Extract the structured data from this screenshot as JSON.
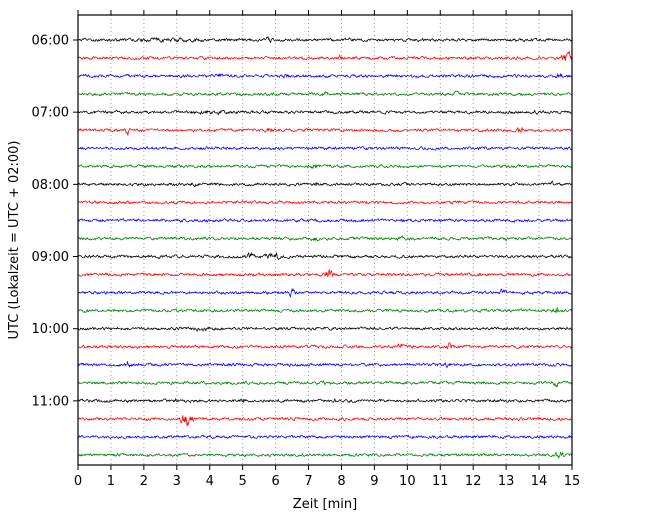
{
  "chart_data": {
    "type": "line",
    "subtype": "seismogram-dayplot",
    "title": "",
    "xlabel": "Zeit  [min]",
    "ylabel": "UTC (Lokalzeit = UTC + 02:00)",
    "xlim": [
      0,
      15
    ],
    "minutes_per_row": 15,
    "x_tick_labels": [
      "0",
      "1",
      "2",
      "3",
      "4",
      "5",
      "6",
      "7",
      "8",
      "9",
      "10",
      "11",
      "12",
      "13",
      "14",
      "15"
    ],
    "y_tick_labels": [
      "06:00",
      "07:00",
      "08:00",
      "09:00",
      "10:00",
      "11:00"
    ],
    "color_cycle": [
      "#000000",
      "#ff0000",
      "#0000ff",
      "#008000"
    ],
    "grid": {
      "vertical": true,
      "style": "dotted",
      "color": "#999999"
    },
    "rows": [
      {
        "start_utc": "06:00",
        "color": "#000000",
        "labeled": true
      },
      {
        "start_utc": "06:15",
        "color": "#ff0000",
        "labeled": false
      },
      {
        "start_utc": "06:30",
        "color": "#0000ff",
        "labeled": false
      },
      {
        "start_utc": "06:45",
        "color": "#008000",
        "labeled": false
      },
      {
        "start_utc": "07:00",
        "color": "#000000",
        "labeled": true
      },
      {
        "start_utc": "07:15",
        "color": "#ff0000",
        "labeled": false
      },
      {
        "start_utc": "07:30",
        "color": "#0000ff",
        "labeled": false
      },
      {
        "start_utc": "07:45",
        "color": "#008000",
        "labeled": false
      },
      {
        "start_utc": "08:00",
        "color": "#000000",
        "labeled": true
      },
      {
        "start_utc": "08:15",
        "color": "#ff0000",
        "labeled": false
      },
      {
        "start_utc": "08:30",
        "color": "#0000ff",
        "labeled": false
      },
      {
        "start_utc": "08:45",
        "color": "#008000",
        "labeled": false
      },
      {
        "start_utc": "09:00",
        "color": "#000000",
        "labeled": true
      },
      {
        "start_utc": "09:15",
        "color": "#ff0000",
        "labeled": false
      },
      {
        "start_utc": "09:30",
        "color": "#0000ff",
        "labeled": false
      },
      {
        "start_utc": "09:45",
        "color": "#008000",
        "labeled": false
      },
      {
        "start_utc": "10:00",
        "color": "#000000",
        "labeled": true
      },
      {
        "start_utc": "10:15",
        "color": "#ff0000",
        "labeled": false
      },
      {
        "start_utc": "10:30",
        "color": "#0000ff",
        "labeled": false
      },
      {
        "start_utc": "10:45",
        "color": "#008000",
        "labeled": false
      },
      {
        "start_utc": "11:00",
        "color": "#000000",
        "labeled": true
      },
      {
        "start_utc": "11:15",
        "color": "#ff0000",
        "labeled": false
      },
      {
        "start_utc": "11:30",
        "color": "#0000ff",
        "labeled": false
      },
      {
        "start_utc": "11:45",
        "color": "#008000",
        "labeled": false
      }
    ],
    "events": [
      {
        "row": 0,
        "min": 2.6,
        "amp": 1.6,
        "w": 0.8
      },
      {
        "row": 0,
        "min": 5.8,
        "amp": 2.2,
        "w": 0.1
      },
      {
        "row": 0,
        "min": 8.3,
        "amp": 1.8,
        "w": 0.08
      },
      {
        "row": 1,
        "min": 8.0,
        "amp": 2.0,
        "w": 0.08
      },
      {
        "row": 1,
        "min": 14.85,
        "amp": 6.0,
        "w": 0.12
      },
      {
        "row": 2,
        "min": 4.3,
        "amp": 2.4,
        "w": 0.08
      },
      {
        "row": 2,
        "min": 6.3,
        "amp": 1.8,
        "w": 0.06
      },
      {
        "row": 2,
        "min": 14.6,
        "amp": 2.2,
        "w": 0.1
      },
      {
        "row": 3,
        "min": 7.5,
        "amp": 2.2,
        "w": 0.07
      },
      {
        "row": 3,
        "min": 11.5,
        "amp": 2.2,
        "w": 0.07
      },
      {
        "row": 4,
        "min": 3.9,
        "amp": 1.5,
        "w": 0.6
      },
      {
        "row": 4,
        "min": 13.9,
        "amp": 1.8,
        "w": 0.06
      },
      {
        "row": 5,
        "min": 1.5,
        "amp": 2.8,
        "w": 0.1
      },
      {
        "row": 5,
        "min": 5.8,
        "amp": 2.4,
        "w": 0.08
      },
      {
        "row": 5,
        "min": 13.4,
        "amp": 3.4,
        "w": 0.1
      },
      {
        "row": 7,
        "min": 7.2,
        "amp": 1.8,
        "w": 0.15
      },
      {
        "row": 8,
        "min": 3.5,
        "amp": 2.8,
        "w": 0.07
      },
      {
        "row": 8,
        "min": 7.2,
        "amp": 2.0,
        "w": 0.06
      },
      {
        "row": 8,
        "min": 14.4,
        "amp": 2.4,
        "w": 0.08
      },
      {
        "row": 11,
        "min": 7.2,
        "amp": 2.2,
        "w": 0.1
      },
      {
        "row": 11,
        "min": 9.8,
        "amp": 1.8,
        "w": 0.08
      },
      {
        "row": 11,
        "min": 13.0,
        "amp": 1.8,
        "w": 0.08
      },
      {
        "row": 12,
        "min": 2.5,
        "amp": 1.8,
        "w": 0.05
      },
      {
        "row": 12,
        "min": 5.2,
        "amp": 3.2,
        "w": 0.12
      },
      {
        "row": 12,
        "min": 6.0,
        "amp": 2.8,
        "w": 0.25
      },
      {
        "row": 13,
        "min": 7.6,
        "amp": 4.0,
        "w": 0.12
      },
      {
        "row": 13,
        "min": 12.2,
        "amp": 1.8,
        "w": 0.06
      },
      {
        "row": 14,
        "min": 6.5,
        "amp": 2.8,
        "w": 0.08
      },
      {
        "row": 14,
        "min": 12.9,
        "amp": 2.8,
        "w": 0.08
      },
      {
        "row": 15,
        "min": 0.3,
        "amp": 1.8,
        "w": 0.05
      },
      {
        "row": 15,
        "min": 14.5,
        "amp": 2.8,
        "w": 0.08
      },
      {
        "row": 16,
        "min": 3.8,
        "amp": 1.7,
        "w": 0.3
      },
      {
        "row": 16,
        "min": 9.0,
        "amp": 1.8,
        "w": 0.06
      },
      {
        "row": 17,
        "min": 9.8,
        "amp": 2.8,
        "w": 0.08
      },
      {
        "row": 17,
        "min": 11.3,
        "amp": 3.2,
        "w": 0.1
      },
      {
        "row": 18,
        "min": 1.5,
        "amp": 2.8,
        "w": 0.07
      },
      {
        "row": 18,
        "min": 11.2,
        "amp": 2.2,
        "w": 0.08
      },
      {
        "row": 19,
        "min": 7.5,
        "amp": 1.8,
        "w": 0.06
      },
      {
        "row": 19,
        "min": 14.5,
        "amp": 2.8,
        "w": 0.1
      },
      {
        "row": 20,
        "min": 3.0,
        "amp": 2.2,
        "w": 0.06
      },
      {
        "row": 20,
        "min": 5.0,
        "amp": 2.2,
        "w": 0.06
      },
      {
        "row": 20,
        "min": 7.8,
        "amp": 1.8,
        "w": 0.05
      },
      {
        "row": 21,
        "min": 3.3,
        "amp": 5.0,
        "w": 0.18
      },
      {
        "row": 23,
        "min": 14.6,
        "amp": 3.2,
        "w": 0.12
      }
    ]
  }
}
